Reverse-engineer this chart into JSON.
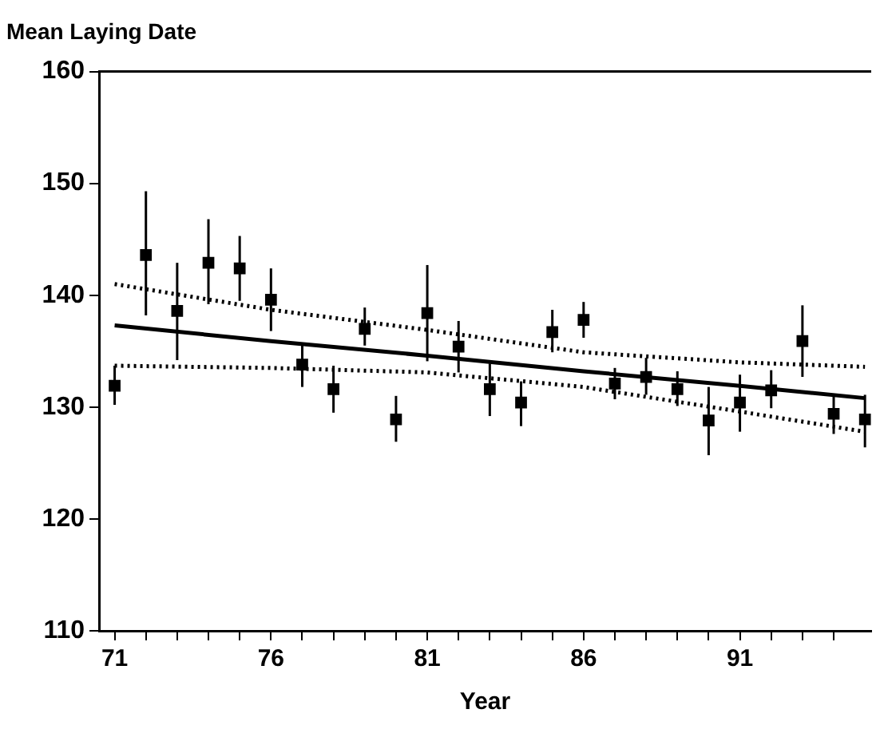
{
  "chart_data": {
    "type": "scatter",
    "title": "Mean Laying Date",
    "xlabel": "Year",
    "xlim": [
      70.5,
      95.2
    ],
    "xticks": [
      71,
      {
        "value": 72,
        "label": null
      },
      {
        "value": 73,
        "label": null
      },
      {
        "value": 74,
        "label": null
      },
      {
        "value": 75,
        "label": null
      },
      76,
      {
        "value": 77,
        "label": null
      },
      {
        "value": 78,
        "label": null
      },
      {
        "value": 79,
        "label": null
      },
      {
        "value": 80,
        "label": null
      },
      81,
      {
        "value": 82,
        "label": null
      },
      {
        "value": 83,
        "label": null
      },
      {
        "value": 84,
        "label": null
      },
      {
        "value": 85,
        "label": null
      },
      86,
      {
        "value": 87,
        "label": null
      },
      {
        "value": 88,
        "label": null
      },
      {
        "value": 89,
        "label": null
      },
      {
        "value": 90,
        "label": null
      },
      91,
      {
        "value": 92,
        "label": null
      },
      {
        "value": 93,
        "label": null
      },
      {
        "value": 94,
        "label": null
      }
    ],
    "ylim": [
      110,
      160
    ],
    "yticks": [
      110,
      120,
      130,
      140,
      150,
      160
    ],
    "grid": false,
    "legend": false,
    "marker": "square",
    "series": [
      {
        "color": "#000000",
        "x": [
          71,
          72,
          73,
          74,
          75,
          76,
          77,
          78,
          79,
          80,
          81,
          82,
          83,
          84,
          85,
          86,
          87,
          88,
          89,
          90,
          91,
          92,
          93,
          94,
          95
        ],
        "values": [
          131.9,
          143.6,
          138.6,
          142.9,
          142.4,
          139.6,
          133.8,
          131.6,
          137.0,
          128.9,
          138.4,
          135.4,
          131.6,
          130.4,
          136.7,
          137.8,
          132.1,
          132.7,
          131.6,
          128.8,
          130.4,
          131.5,
          135.9,
          129.4,
          128.9
        ],
        "errors": [
          [
            130.2,
            133.7
          ],
          [
            138.2,
            149.3
          ],
          [
            134.2,
            142.9
          ],
          [
            139.2,
            146.8
          ],
          [
            139.5,
            145.3
          ],
          [
            136.8,
            142.4
          ],
          [
            131.8,
            135.6
          ],
          [
            129.5,
            133.7
          ],
          [
            135.5,
            138.9
          ],
          [
            126.9,
            131.0
          ],
          [
            134.1,
            142.7
          ],
          [
            133.1,
            137.7
          ],
          [
            129.2,
            133.9
          ],
          [
            128.3,
            132.3
          ],
          [
            134.9,
            138.7
          ],
          [
            136.2,
            139.4
          ],
          [
            130.7,
            133.5
          ],
          [
            131.1,
            134.4
          ],
          [
            130.1,
            133.2
          ],
          [
            125.7,
            131.8
          ],
          [
            127.8,
            132.9
          ],
          [
            129.9,
            133.3
          ],
          [
            132.7,
            139.1
          ],
          [
            127.6,
            131.1
          ],
          [
            126.4,
            131.1
          ]
        ]
      },
      {
        "type": "line",
        "color": "#000000",
        "marker": "none",
        "line_style": "solid",
        "x": [
          71,
          76,
          81,
          86,
          91,
          95
        ],
        "values": [
          137.3,
          135.9,
          134.6,
          133.2,
          131.9,
          130.8
        ]
      },
      {
        "type": "line",
        "color": "#000000",
        "marker": "none",
        "line_style": "dotted",
        "x": [
          71,
          76,
          81,
          86,
          91,
          95
        ],
        "values": [
          133.7,
          133.5,
          133.1,
          131.8,
          129.6,
          127.8
        ]
      },
      {
        "type": "line",
        "color": "#000000",
        "marker": "none",
        "line_style": "dotted",
        "x": [
          71,
          76,
          81,
          86,
          91,
          95
        ],
        "values": [
          141.0,
          138.7,
          136.9,
          134.9,
          134.0,
          133.6
        ]
      }
    ]
  }
}
